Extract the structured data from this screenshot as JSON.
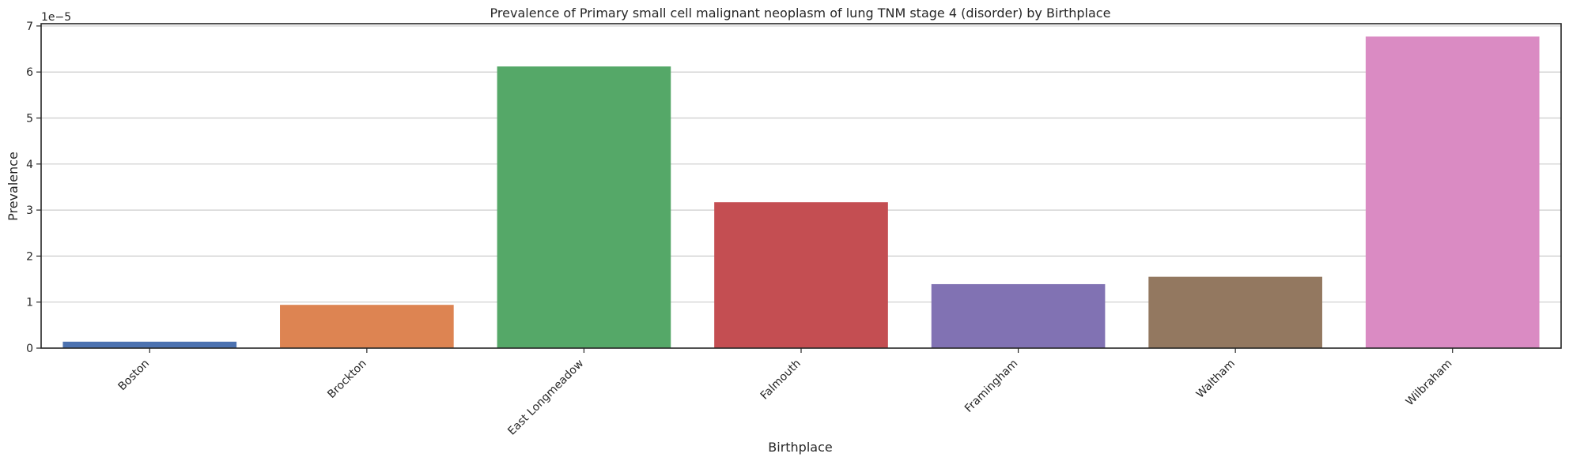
{
  "chart_data": {
    "type": "bar",
    "title": "Prevalence of Primary small cell malignant neoplasm of lung  TNM stage 4 (disorder) by Birthplace",
    "xlabel": "Birthplace",
    "ylabel": "Prevalence",
    "offset_text": "1e−5",
    "categories": [
      "Boston",
      "Brockton",
      "East Longmeadow",
      "Falmouth",
      "Framingham",
      "Waltham",
      "Wilbraham"
    ],
    "values": [
      0.14,
      0.94,
      6.12,
      3.17,
      1.39,
      1.55,
      6.77
    ],
    "colors": [
      "#4c72b0",
      "#dd8452",
      "#55a868",
      "#c44e52",
      "#8172b3",
      "#937860",
      "#da8bc3"
    ],
    "yticks": [
      "0",
      "1",
      "2",
      "3",
      "4",
      "5",
      "6",
      "7"
    ],
    "ylim": [
      0,
      7.05
    ],
    "grid": "horizontal"
  }
}
